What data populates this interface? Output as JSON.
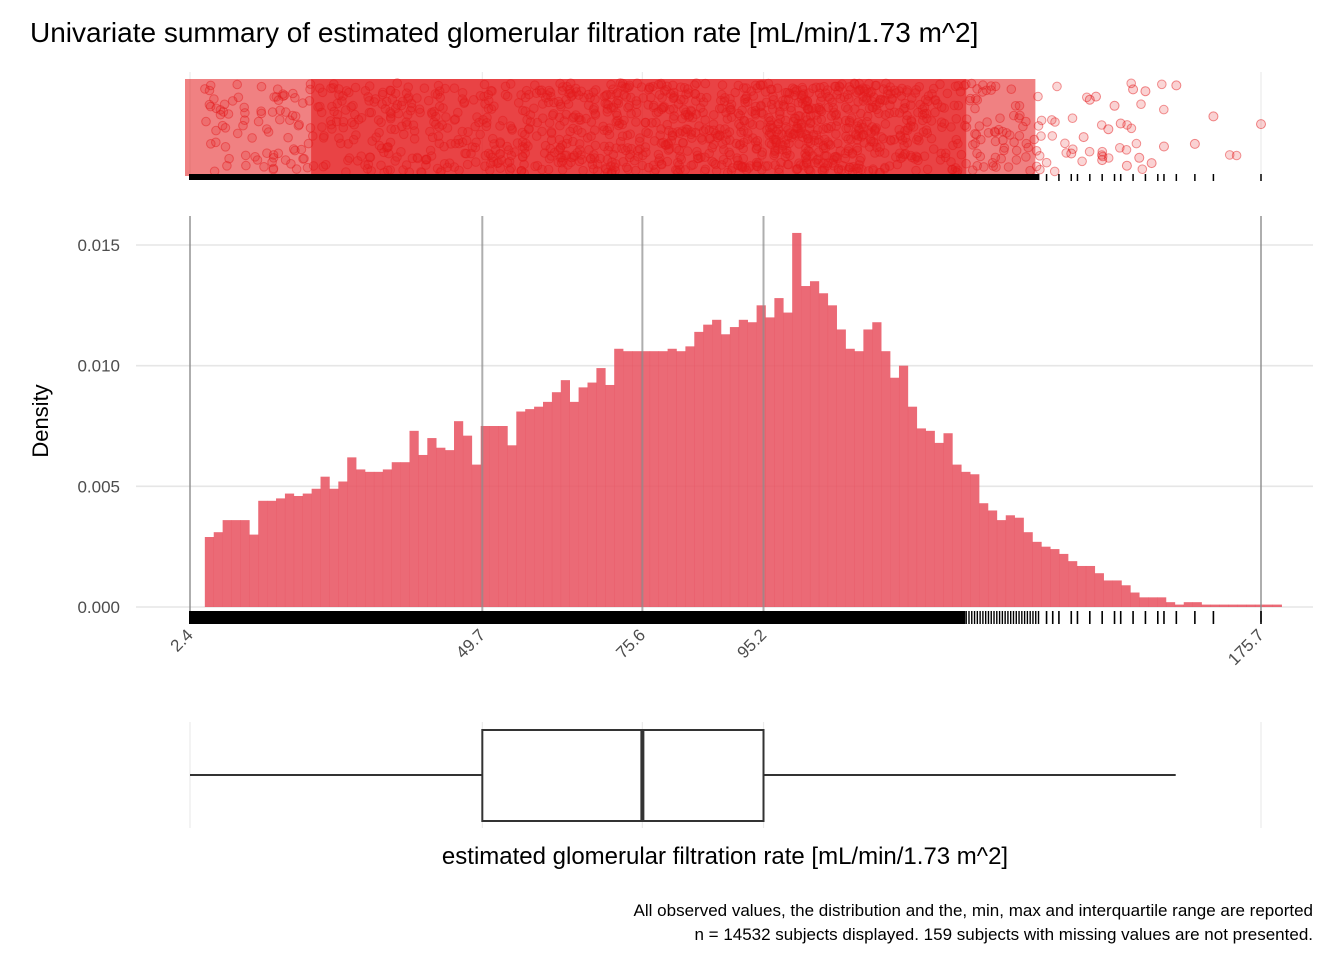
{
  "chart_data": {
    "type": "bar",
    "title": "Univariate summary of estimated glomerular filtration rate [mL/min/1.73 m^2]",
    "xlabel": "estimated glomerular filtration rate [mL/min/1.73 m^2]",
    "ylabel": "Density",
    "xlim": [
      2.4,
      175.7
    ],
    "ylim": [
      0,
      0.0155
    ],
    "x_ticks": [
      "2.4",
      "49.7",
      "75.6",
      "95.2",
      "175.7"
    ],
    "x_tick_values": [
      2.4,
      49.7,
      75.6,
      95.2,
      175.7
    ],
    "y_ticks": [
      "0.000",
      "0.005",
      "0.010",
      "0.015"
    ],
    "y_tick_values": [
      0,
      0.005,
      0.01,
      0.015
    ],
    "histogram": {
      "bin_width": 1.44,
      "bin_start": 4.8,
      "densities": [
        0.0029,
        0.0031,
        0.0036,
        0.0036,
        0.0036,
        0.003,
        0.0044,
        0.0044,
        0.0045,
        0.0047,
        0.0046,
        0.0047,
        0.0049,
        0.0054,
        0.0049,
        0.0052,
        0.0062,
        0.0057,
        0.0056,
        0.0056,
        0.0057,
        0.006,
        0.006,
        0.0073,
        0.0063,
        0.007,
        0.0066,
        0.0065,
        0.0077,
        0.0071,
        0.0059,
        0.0075,
        0.0075,
        0.0075,
        0.0067,
        0.0081,
        0.0082,
        0.0083,
        0.0085,
        0.0089,
        0.0094,
        0.0085,
        0.0091,
        0.0093,
        0.0099,
        0.0092,
        0.0107,
        0.0106,
        0.0106,
        0.0106,
        0.0106,
        0.0106,
        0.0107,
        0.0106,
        0.0108,
        0.0114,
        0.0117,
        0.0119,
        0.0113,
        0.0116,
        0.0119,
        0.0118,
        0.0125,
        0.012,
        0.0128,
        0.0122,
        0.0155,
        0.0133,
        0.0135,
        0.013,
        0.0125,
        0.0115,
        0.0107,
        0.0106,
        0.0115,
        0.0118,
        0.0106,
        0.0095,
        0.01,
        0.0083,
        0.0074,
        0.0073,
        0.0068,
        0.0072,
        0.0059,
        0.0056,
        0.0055,
        0.0043,
        0.004,
        0.0036,
        0.0038,
        0.0037,
        0.0031,
        0.0027,
        0.0025,
        0.0024,
        0.0022,
        0.0019,
        0.0017,
        0.0017,
        0.0014,
        0.0011,
        0.0011,
        0.0009,
        0.0006,
        0.0004,
        0.0004,
        0.0004,
        0.0002,
        0.0001,
        0.0002,
        0.0002,
        0.0001,
        0.0001,
        0.0001,
        0.0001,
        0.0001,
        0.0001,
        0.0001,
        0.0001,
        0.0001
      ]
    },
    "reference_lines": [
      2.4,
      49.7,
      75.6,
      95.2,
      175.7
    ],
    "boxplot": {
      "lower_whisker": 2.4,
      "q1": 49.7,
      "median": 75.6,
      "q3": 95.2,
      "upper_whisker": 161.9
    },
    "caption": [
      "All observed values, the distribution and the, min, max and interquartile range are reported",
      "n = 14532 subjects displayed. 159 subjects with missing values are not presented."
    ],
    "colors": {
      "points": "#e41a1c",
      "histogram": "#e8505e",
      "reference_line": "#999999",
      "box": "#333333"
    }
  }
}
